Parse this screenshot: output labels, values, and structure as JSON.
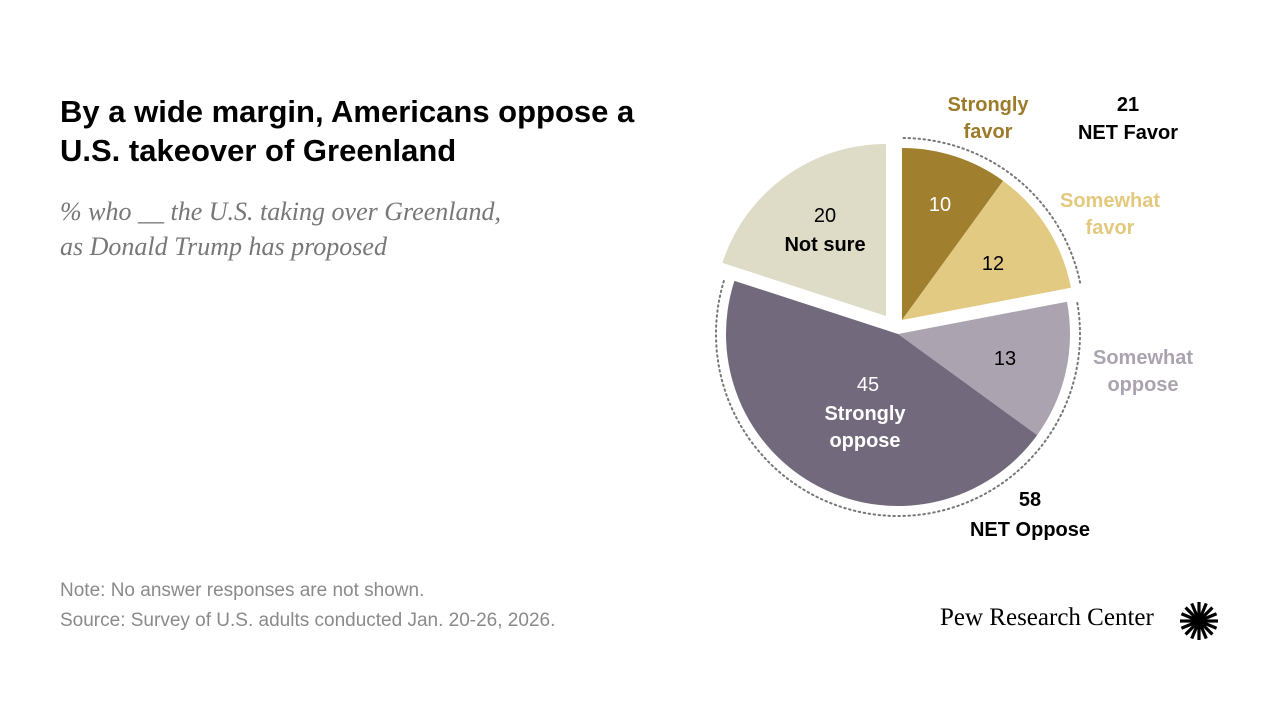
{
  "title": "By a wide margin, Americans oppose a U.S. takeover of Greenland",
  "subtitle_line1": "% who __ the U.S. taking over Greenland,",
  "subtitle_line2": "as Donald Trump has proposed",
  "note": "Note: No answer responses are not shown.",
  "source": "Source: Survey of U.S. adults conducted Jan. 20-26, 2026.",
  "brand": "Pew Research Center",
  "chart_data": {
    "type": "pie",
    "slices": [
      {
        "label": "Strongly favor",
        "value": 10,
        "color": "#A07F2E",
        "group": "favor"
      },
      {
        "label": "Somewhat favor",
        "value": 12,
        "color": "#E3CA82",
        "group": "favor"
      },
      {
        "label": "Somewhat oppose",
        "value": 13,
        "color": "#ABA3B0",
        "group": "oppose"
      },
      {
        "label": "Strongly oppose",
        "value": 45,
        "color": "#73697D",
        "group": "oppose"
      },
      {
        "label": "Not sure",
        "value": 20,
        "color": "#DEDBC6",
        "group": "notsure"
      }
    ],
    "nets": [
      {
        "label": "NET Favor",
        "value": 21
      },
      {
        "label": "NET Oppose",
        "value": 58
      }
    ]
  }
}
